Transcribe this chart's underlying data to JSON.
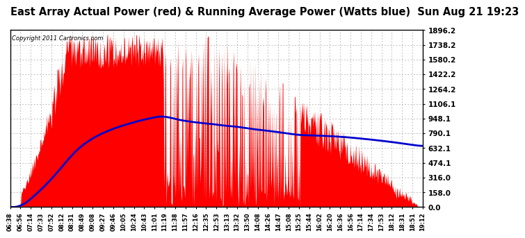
{
  "title": "East Array Actual Power (red) & Running Average Power (Watts blue)  Sun Aug 21 19:23",
  "copyright": "Copyright 2011 Cartronics.com",
  "title_fontsize": 10.5,
  "background_color": "#ffffff",
  "plot_bg_color": "#ffffff",
  "grid_color": "#aaaaaa",
  "ytick_labels": [
    "0.0",
    "158.0",
    "316.0",
    "474.1",
    "632.1",
    "790.1",
    "948.1",
    "1106.1",
    "1264.2",
    "1422.2",
    "1580.2",
    "1738.2",
    "1896.2"
  ],
  "ytick_values": [
    0.0,
    158.0,
    316.0,
    474.1,
    632.1,
    790.1,
    948.1,
    1106.1,
    1264.2,
    1422.2,
    1580.2,
    1738.2,
    1896.2
  ],
  "ymax": 1896.2,
  "ymin": 0.0,
  "fill_color": "#ff0000",
  "avg_color": "#0000cc",
  "avg_linewidth": 2.0,
  "xtick_labels": [
    "06:38",
    "06:56",
    "07:14",
    "07:33",
    "07:52",
    "08:12",
    "08:31",
    "08:49",
    "09:08",
    "09:27",
    "09:46",
    "10:05",
    "10:24",
    "10:43",
    "11:01",
    "11:19",
    "11:38",
    "11:57",
    "12:16",
    "12:35",
    "12:53",
    "13:13",
    "13:32",
    "13:50",
    "14:08",
    "14:26",
    "14:47",
    "15:08",
    "15:25",
    "15:44",
    "16:02",
    "16:20",
    "16:36",
    "16:56",
    "17:14",
    "17:34",
    "17:53",
    "18:12",
    "18:31",
    "18:51",
    "19:12"
  ]
}
